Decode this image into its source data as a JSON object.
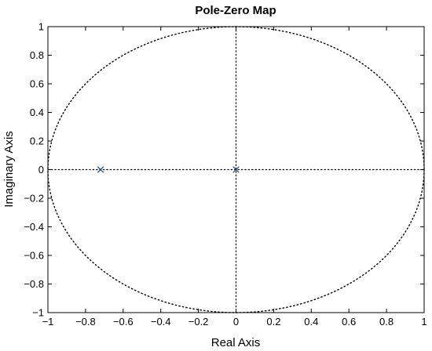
{
  "chart_data": {
    "type": "scatter",
    "title": "Pole-Zero Map",
    "xlabel": "Real Axis",
    "ylabel": "Imaginary Axis",
    "xlim": [
      -1,
      1
    ],
    "ylim": [
      -1,
      1
    ],
    "xticks": [
      -1,
      -0.8,
      -0.6,
      -0.4,
      -0.2,
      0,
      0.2,
      0.4,
      0.6,
      0.8,
      1
    ],
    "yticks": [
      -1,
      -0.8,
      -0.6,
      -0.4,
      -0.2,
      0,
      0.2,
      0.4,
      0.6,
      0.8,
      1
    ],
    "xtick_labels": [
      "−1",
      "−0.8",
      "−0.6",
      "−0.4",
      "−0.2",
      "0",
      "0.2",
      "0.4",
      "0.6",
      "0.8",
      "1"
    ],
    "ytick_labels": [
      "−1",
      "−0.8",
      "−0.6",
      "−0.4",
      "−0.2",
      "0",
      "0.2",
      "0.4",
      "0.6",
      "0.8",
      "1"
    ],
    "poles": [
      {
        "x": -0.72,
        "y": 0
      },
      {
        "x": 0,
        "y": 0
      }
    ],
    "zeros": [],
    "unit_circle": true,
    "reference_lines": {
      "real_axis": true,
      "imaginary_axis": true
    },
    "grid": false,
    "colors": {
      "marker": "#1f3f7a",
      "axes": "#000000",
      "reference": "#000000"
    }
  }
}
